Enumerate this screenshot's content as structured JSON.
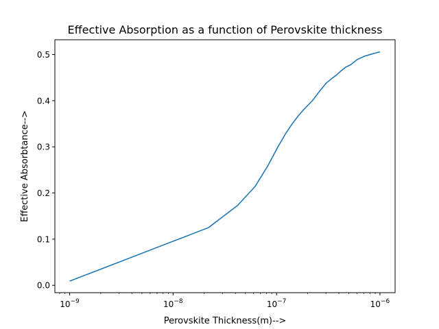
{
  "chart_data": {
    "type": "line",
    "title": "Effective Absorption as a function of Perovskite thickness",
    "xlabel": "Perovskite Thickness(m)-->",
    "ylabel": "Effective Absorbtance-->",
    "xscale": "log",
    "xlim": [
      7.2e-10,
      1.4e-06
    ],
    "ylim": [
      -0.016,
      0.532
    ],
    "grid": false,
    "x_ticks": [
      {
        "value": 1e-09,
        "base": "10",
        "exp": "−9"
      },
      {
        "value": 1e-08,
        "base": "10",
        "exp": "−8"
      },
      {
        "value": 1e-07,
        "base": "10",
        "exp": "−7"
      },
      {
        "value": 1e-06,
        "base": "10",
        "exp": "−6"
      }
    ],
    "y_ticks": [
      {
        "value": 0.0,
        "label": "0.0"
      },
      {
        "value": 0.1,
        "label": "0.1"
      },
      {
        "value": 0.2,
        "label": "0.2"
      },
      {
        "value": 0.3,
        "label": "0.3"
      },
      {
        "value": 0.4,
        "label": "0.4"
      },
      {
        "value": 0.5,
        "label": "0.5"
      }
    ],
    "series": [
      {
        "color": "#1f77b4",
        "x": [
          1e-09,
          2.2e-08,
          4.2e-08,
          6.2e-08,
          8.2e-08,
          1.02e-07,
          1.22e-07,
          1.42e-07,
          1.62e-07,
          1.82e-07,
          2.22e-07,
          2.62e-07,
          3.02e-07,
          3.42e-07,
          3.82e-07,
          4.22e-07,
          4.62e-07,
          5.22e-07,
          6.02e-07,
          7.02e-07,
          8.02e-07,
          1e-06
        ],
        "y": [
          0.009,
          0.125,
          0.173,
          0.214,
          0.258,
          0.298,
          0.328,
          0.35,
          0.367,
          0.38,
          0.4,
          0.421,
          0.438,
          0.448,
          0.456,
          0.465,
          0.472,
          0.478,
          0.489,
          0.496,
          0.5,
          0.506
        ]
      }
    ]
  }
}
